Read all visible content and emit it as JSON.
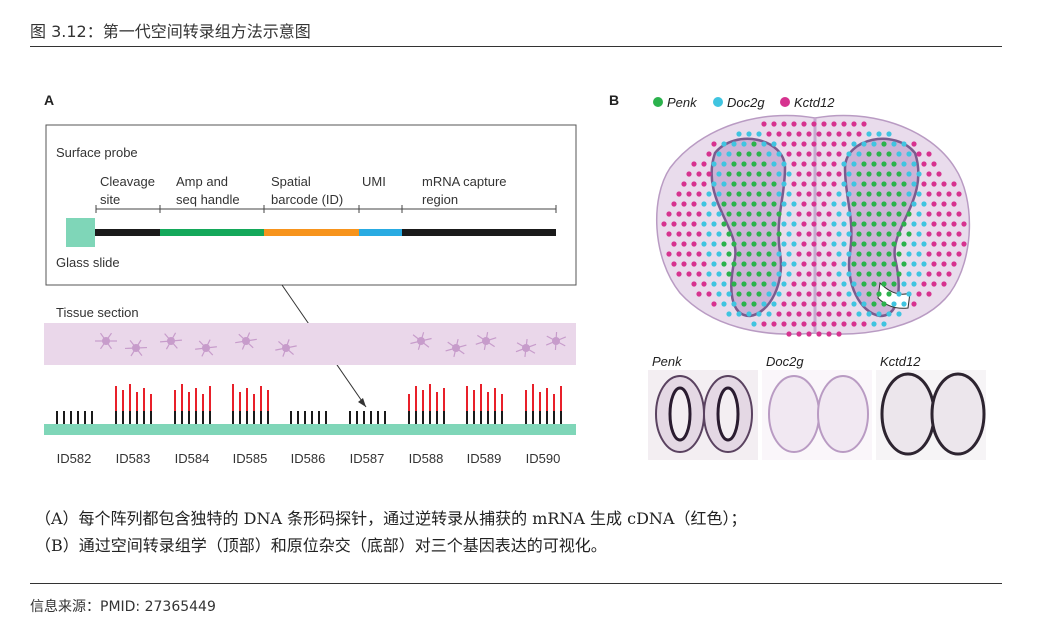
{
  "figure": {
    "title": "图 3.12：第一代空间转录组方法示意图"
  },
  "panel_a": {
    "label": "A",
    "surface_probe": "Surface probe",
    "segments": {
      "cleavage_l1": "Cleavage",
      "cleavage_l2": "site",
      "amp_l1": "Amp and",
      "amp_l2": "seq handle",
      "spatial_l1": "Spatial",
      "spatial_l2": "barcode (ID)",
      "umi": "UMI",
      "mrna_l1": "mRNA capture",
      "mrna_l2": "region"
    },
    "glass_slide": "Glass slide",
    "tissue_section": "Tissue section",
    "ids": [
      "ID582",
      "ID583",
      "ID584",
      "ID585",
      "ID586",
      "ID587",
      "ID588",
      "ID589",
      "ID590"
    ],
    "colors": {
      "slide": "#7fd6b8",
      "black": "#1a1a1a",
      "green": "#14a85a",
      "orange": "#f7941d",
      "blue": "#29abe2",
      "tissue": "#ead7ea",
      "red": "#e8202a"
    }
  },
  "panel_b": {
    "label": "B",
    "legend": [
      "Penk",
      "Doc2g",
      "Kctd12"
    ],
    "legend_colors": [
      "#2bb24c",
      "#40c4e0",
      "#d6338f"
    ],
    "insets": [
      "Penk",
      "Doc2g",
      "Kctd12"
    ]
  },
  "caption": {
    "line1": "（A）每个阵列都包含独特的 DNA 条形码探针，通过逆转录从捕获的 mRNA 生成 cDNA（红色）；",
    "line2": "（B）通过空间转录组学（顶部）和原位杂交（底部）对三个基因表达的可视化。"
  },
  "source": "信息来源：PMID: 27365449"
}
